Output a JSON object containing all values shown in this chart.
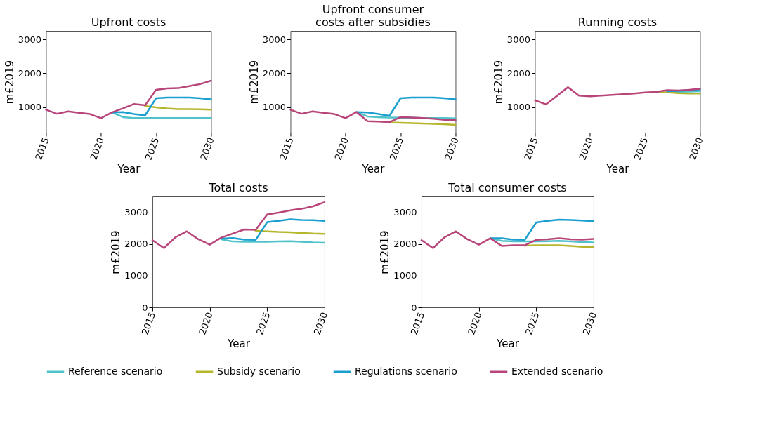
{
  "chart_data": [
    {
      "type": "line",
      "title": "Upfront costs",
      "xlabel": "Year",
      "ylabel": "m£2019",
      "xlim": [
        2015,
        2030
      ],
      "xticks": [
        2015,
        2020,
        2025,
        2030
      ],
      "ylim": [
        240,
        3260
      ],
      "yticks": [
        1000,
        2000,
        3000
      ],
      "grid": false,
      "legend": "bottom",
      "line_style": "solid",
      "x": [
        2015,
        2016,
        2017,
        2018,
        2019,
        2020,
        2021,
        2022,
        2023,
        2024,
        2025,
        2026,
        2027,
        2028,
        2029,
        2030
      ],
      "series": [
        {
          "name": "Reference scenario",
          "color": "#4fc3c9",
          "values": [
            null,
            null,
            null,
            null,
            null,
            null,
            840,
            700,
            670,
            670,
            670,
            670,
            670,
            670,
            670,
            670
          ]
        },
        {
          "name": "Subsidy scenario",
          "color": "#b5b62c",
          "values": [
            null,
            null,
            null,
            null,
            null,
            null,
            null,
            null,
            null,
            1030,
            990,
            960,
            940,
            940,
            930,
            920
          ]
        },
        {
          "name": "Regulations scenario",
          "color": "#1a9fd0",
          "values": [
            null,
            null,
            null,
            null,
            null,
            null,
            840,
            850,
            790,
            750,
            1260,
            1280,
            1280,
            1280,
            1260,
            1230
          ]
        },
        {
          "name": "Extended scenario",
          "color": "#b8457a",
          "values": [
            920,
            800,
            870,
            830,
            790,
            670,
            840,
            960,
            1090,
            1050,
            1510,
            1550,
            1560,
            1620,
            1680,
            1780
          ]
        }
      ]
    },
    {
      "type": "line",
      "title": "Upfront consumer\ncosts after subsidies",
      "xlabel": "Year",
      "ylabel": "m£2019",
      "xlim": [
        2015,
        2030
      ],
      "xticks": [
        2015,
        2020,
        2025,
        2030
      ],
      "ylim": [
        240,
        3260
      ],
      "yticks": [
        1000,
        2000,
        3000
      ],
      "grid": false,
      "legend": "bottom",
      "line_style": "solid",
      "x": [
        2015,
        2016,
        2017,
        2018,
        2019,
        2020,
        2021,
        2022,
        2023,
        2024,
        2025,
        2026,
        2027,
        2028,
        2029,
        2030
      ],
      "series": [
        {
          "name": "Reference scenario",
          "color": "#4fc3c9",
          "values": [
            null,
            null,
            null,
            null,
            null,
            null,
            850,
            720,
            700,
            690,
            680,
            680,
            670,
            670,
            670,
            660
          ]
        },
        {
          "name": "Subsidy scenario",
          "color": "#b5b62c",
          "values": [
            null,
            null,
            null,
            null,
            null,
            null,
            null,
            null,
            null,
            540,
            530,
            520,
            510,
            500,
            490,
            470
          ]
        },
        {
          "name": "Regulations scenario",
          "color": "#1a9fd0",
          "values": [
            null,
            null,
            null,
            null,
            null,
            null,
            850,
            840,
            790,
            740,
            1260,
            1280,
            1280,
            1280,
            1260,
            1230
          ]
        },
        {
          "name": "Extended scenario",
          "color": "#b8457a",
          "values": [
            920,
            800,
            870,
            830,
            790,
            670,
            850,
            580,
            570,
            550,
            700,
            690,
            670,
            650,
            620,
            610
          ]
        }
      ]
    },
    {
      "type": "line",
      "title": "Running costs",
      "xlabel": "Year",
      "ylabel": "m£2019",
      "xlim": [
        2015,
        2030
      ],
      "xticks": [
        2015,
        2020,
        2025,
        2030
      ],
      "ylim": [
        240,
        3260
      ],
      "yticks": [
        1000,
        2000,
        3000
      ],
      "grid": false,
      "legend": "bottom",
      "line_style": "solid",
      "x": [
        2015,
        2016,
        2017,
        2018,
        2019,
        2020,
        2021,
        2022,
        2023,
        2024,
        2025,
        2026,
        2027,
        2028,
        2029,
        2030
      ],
      "series": [
        {
          "name": "Reference scenario",
          "color": "#4fc3c9",
          "values": [
            null,
            null,
            null,
            null,
            null,
            null,
            null,
            null,
            null,
            null,
            null,
            null,
            1450,
            1450,
            1460,
            1470
          ]
        },
        {
          "name": "Subsidy scenario",
          "color": "#b5b62c",
          "values": [
            null,
            null,
            null,
            null,
            null,
            null,
            null,
            null,
            null,
            null,
            null,
            1430,
            1440,
            1410,
            1400,
            1400
          ]
        },
        {
          "name": "Regulations scenario",
          "color": "#1a9fd0",
          "values": [
            null,
            null,
            null,
            null,
            null,
            null,
            null,
            null,
            null,
            null,
            null,
            null,
            1470,
            1480,
            1500,
            1520
          ]
        },
        {
          "name": "Extended scenario",
          "color": "#b8457a",
          "values": [
            1200,
            1080,
            1330,
            1590,
            1340,
            1320,
            1340,
            1360,
            1380,
            1400,
            1430,
            1450,
            1500,
            1490,
            1510,
            1540
          ]
        }
      ]
    },
    {
      "type": "line",
      "title": "Total costs",
      "xlabel": "Year",
      "ylabel": "m£2019",
      "xlim": [
        2015,
        2030
      ],
      "xticks": [
        2015,
        2020,
        2025,
        2030
      ],
      "ylim": [
        0,
        3500
      ],
      "yticks": [
        0,
        1000,
        2000,
        3000
      ],
      "grid": false,
      "legend": "bottom",
      "line_style": "solid",
      "x": [
        2015,
        2016,
        2017,
        2018,
        2019,
        2020,
        2021,
        2022,
        2023,
        2024,
        2025,
        2026,
        2027,
        2028,
        2029,
        2030
      ],
      "series": [
        {
          "name": "Reference scenario",
          "color": "#4fc3c9",
          "values": [
            null,
            null,
            null,
            null,
            null,
            null,
            2150,
            2080,
            2070,
            2070,
            2070,
            2080,
            2090,
            2070,
            2050,
            2040
          ]
        },
        {
          "name": "Subsidy scenario",
          "color": "#b5b62c",
          "values": [
            null,
            null,
            null,
            null,
            null,
            null,
            null,
            null,
            null,
            2420,
            2400,
            2380,
            2370,
            2350,
            2330,
            2320
          ]
        },
        {
          "name": "Regulations scenario",
          "color": "#1a9fd0",
          "values": [
            null,
            null,
            null,
            null,
            null,
            null,
            2170,
            2190,
            2140,
            2130,
            2690,
            2730,
            2780,
            2760,
            2750,
            2730
          ]
        },
        {
          "name": "Extended scenario",
          "color": "#b8457a",
          "values": [
            2120,
            1870,
            2210,
            2400,
            2150,
            1980,
            2200,
            2330,
            2460,
            2450,
            2930,
            2990,
            3060,
            3110,
            3190,
            3320
          ]
        }
      ]
    },
    {
      "type": "line",
      "title": "Total consumer costs",
      "xlabel": "Year",
      "ylabel": "m£2019",
      "xlim": [
        2015,
        2030
      ],
      "xticks": [
        2015,
        2020,
        2025,
        2030
      ],
      "ylim": [
        0,
        3500
      ],
      "yticks": [
        0,
        1000,
        2000,
        3000
      ],
      "grid": false,
      "legend": "bottom",
      "line_style": "solid",
      "x": [
        2015,
        2016,
        2017,
        2018,
        2019,
        2020,
        2021,
        2022,
        2023,
        2024,
        2025,
        2026,
        2027,
        2028,
        2029,
        2030
      ],
      "series": [
        {
          "name": "Reference scenario",
          "color": "#4fc3c9",
          "values": [
            null,
            null,
            null,
            null,
            null,
            null,
            2180,
            2100,
            2080,
            2080,
            2080,
            2090,
            2100,
            2080,
            2060,
            2050
          ]
        },
        {
          "name": "Subsidy scenario",
          "color": "#b5b62c",
          "values": [
            null,
            null,
            null,
            null,
            null,
            null,
            null,
            null,
            null,
            1950,
            1960,
            1960,
            1960,
            1940,
            1910,
            1900
          ]
        },
        {
          "name": "Regulations scenario",
          "color": "#1a9fd0",
          "values": [
            null,
            null,
            null,
            null,
            null,
            null,
            2180,
            2180,
            2140,
            2130,
            2680,
            2730,
            2770,
            2760,
            2740,
            2720
          ]
        },
        {
          "name": "Extended scenario",
          "color": "#b8457a",
          "values": [
            2120,
            1870,
            2210,
            2400,
            2150,
            1980,
            2180,
            1940,
            1960,
            1960,
            2130,
            2150,
            2180,
            2150,
            2140,
            2160
          ]
        }
      ]
    }
  ]
}
